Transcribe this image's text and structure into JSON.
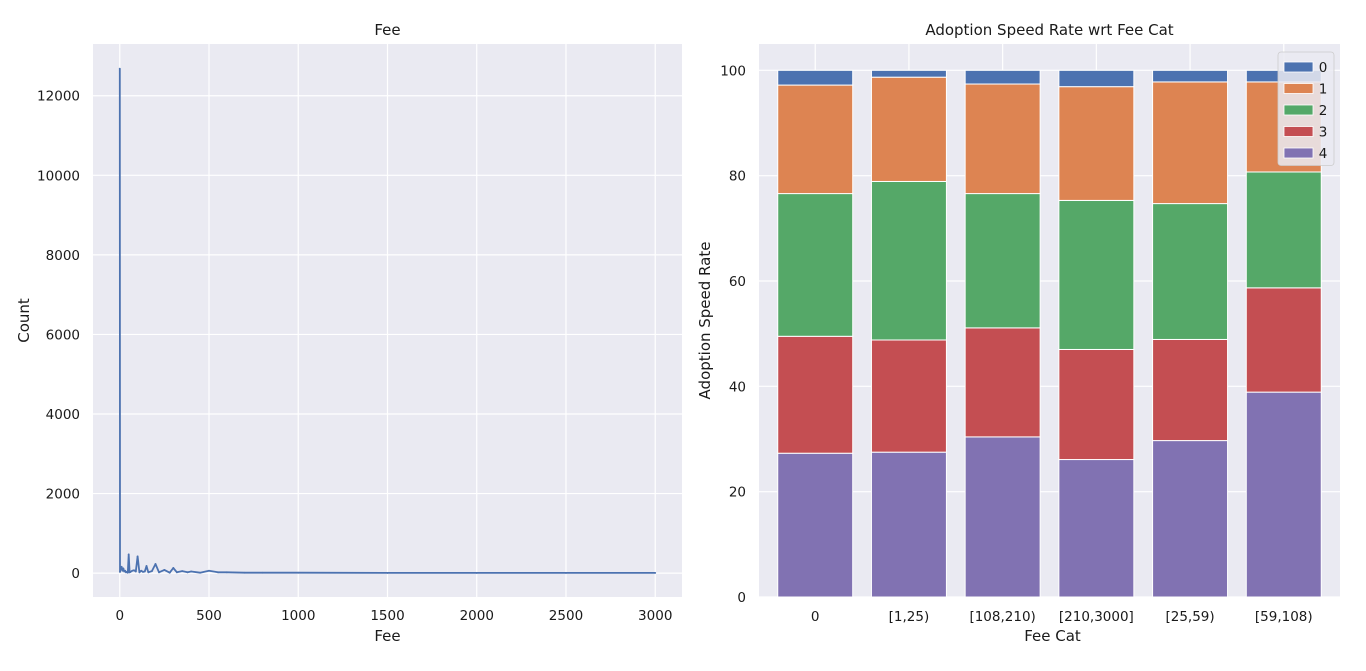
{
  "chart_data": [
    {
      "type": "line",
      "title": "Fee",
      "xlabel": "Fee",
      "ylabel": "Count",
      "xlim": [
        -150,
        3150
      ],
      "ylim": [
        -600,
        13300
      ],
      "xticks": [
        0,
        500,
        1000,
        1500,
        2000,
        2500,
        3000
      ],
      "yticks": [
        0,
        2000,
        4000,
        6000,
        8000,
        10000,
        12000
      ],
      "grid": true,
      "series": [
        {
          "color": "#4c72b0",
          "x": [
            0,
            1,
            5,
            10,
            15,
            20,
            25,
            30,
            35,
            40,
            45,
            50,
            55,
            60,
            70,
            80,
            90,
            100,
            110,
            120,
            130,
            140,
            150,
            160,
            180,
            200,
            220,
            250,
            280,
            300,
            320,
            350,
            380,
            400,
            450,
            500,
            550,
            600,
            700,
            800,
            1000,
            1500,
            2000,
            2500,
            3000
          ],
          "y": [
            12680,
            30,
            110,
            160,
            60,
            120,
            40,
            60,
            20,
            30,
            10,
            470,
            20,
            30,
            60,
            70,
            40,
            420,
            20,
            60,
            30,
            40,
            180,
            20,
            50,
            230,
            20,
            80,
            10,
            130,
            20,
            50,
            20,
            40,
            10,
            60,
            20,
            20,
            10,
            10,
            10,
            5,
            5,
            5,
            5
          ]
        }
      ]
    },
    {
      "type": "bar",
      "stacked": true,
      "title": "Adoption Speed Rate wrt Fee Cat",
      "xlabel": "Fee Cat",
      "ylabel": "Adoption Speed Rate",
      "ylim": [
        0,
        105
      ],
      "yticks": [
        0,
        20,
        40,
        60,
        80,
        100
      ],
      "grid": true,
      "legend_position": "top-right",
      "categories": [
        "0",
        "[1,25)",
        "[108,210)",
        "[210,3000]",
        "[25,59)",
        "[59,108)"
      ],
      "series": [
        {
          "name": "4",
          "color": "#8172b2",
          "values": [
            27.3,
            27.5,
            30.4,
            26.1,
            29.7,
            38.9
          ]
        },
        {
          "name": "3",
          "color": "#c44e52",
          "values": [
            22.2,
            21.3,
            20.7,
            20.9,
            19.2,
            19.8
          ]
        },
        {
          "name": "2",
          "color": "#55a868",
          "values": [
            27.1,
            30.1,
            25.5,
            28.3,
            25.8,
            22.0
          ]
        },
        {
          "name": "1",
          "color": "#dd8452",
          "values": [
            20.6,
            19.8,
            20.8,
            21.6,
            23.1,
            17.1
          ]
        },
        {
          "name": "0",
          "color": "#4c72b0",
          "values": [
            2.8,
            1.3,
            2.6,
            3.1,
            2.2,
            2.2
          ]
        }
      ],
      "legend_order": [
        "0",
        "1",
        "2",
        "3",
        "4"
      ]
    }
  ]
}
